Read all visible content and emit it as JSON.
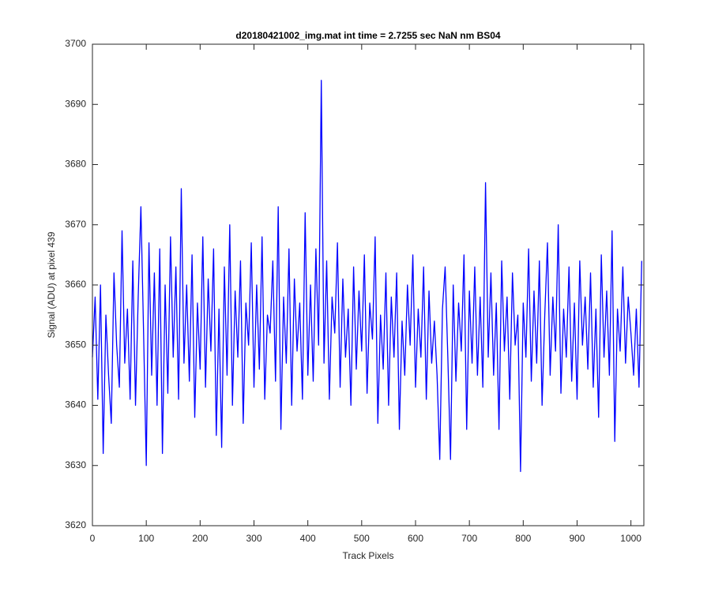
{
  "chart_data": {
    "type": "line",
    "title": "d20180421002_img.mat int time = 2.7255 sec  NaN nm BS04",
    "x_label": "Track Pixels",
    "y_label": "Signal (ADU) at pixel 439",
    "xlim": [
      0,
      1024
    ],
    "ylim": [
      3620,
      3700
    ],
    "xticks": [
      0,
      100,
      200,
      300,
      400,
      500,
      600,
      700,
      800,
      900,
      1000
    ],
    "yticks": [
      3620,
      3630,
      3640,
      3650,
      3660,
      3670,
      3680,
      3690,
      3700
    ],
    "grid": false,
    "x": [
      0,
      5,
      10,
      15,
      20,
      25,
      30,
      35,
      40,
      45,
      50,
      55,
      60,
      65,
      70,
      75,
      80,
      85,
      90,
      95,
      100,
      105,
      110,
      115,
      120,
      125,
      130,
      135,
      140,
      145,
      150,
      155,
      160,
      165,
      170,
      175,
      180,
      185,
      190,
      195,
      200,
      205,
      210,
      215,
      220,
      225,
      230,
      235,
      240,
      245,
      250,
      255,
      260,
      265,
      270,
      275,
      280,
      285,
      290,
      295,
      300,
      305,
      310,
      315,
      320,
      325,
      330,
      335,
      340,
      345,
      350,
      355,
      360,
      365,
      370,
      375,
      380,
      385,
      390,
      395,
      400,
      405,
      410,
      415,
      420,
      425,
      430,
      435,
      440,
      445,
      450,
      455,
      460,
      465,
      470,
      475,
      480,
      485,
      490,
      495,
      500,
      505,
      510,
      515,
      520,
      525,
      530,
      535,
      540,
      545,
      550,
      555,
      560,
      565,
      570,
      575,
      580,
      585,
      590,
      595,
      600,
      605,
      610,
      615,
      620,
      625,
      630,
      635,
      640,
      645,
      650,
      655,
      660,
      665,
      670,
      675,
      680,
      685,
      690,
      695,
      700,
      705,
      710,
      715,
      720,
      725,
      730,
      735,
      740,
      745,
      750,
      755,
      760,
      765,
      770,
      775,
      780,
      785,
      790,
      795,
      800,
      805,
      810,
      815,
      820,
      825,
      830,
      835,
      840,
      845,
      850,
      855,
      860,
      865,
      870,
      875,
      880,
      885,
      890,
      895,
      900,
      905,
      910,
      915,
      920,
      925,
      930,
      935,
      940,
      945,
      950,
      955,
      960,
      965,
      970,
      975,
      980,
      985,
      990,
      995,
      1000,
      1005,
      1010,
      1015,
      1020
    ],
    "series": [
      {
        "color": "#0000ff",
        "values": [
          3648,
          3658,
          3641,
          3660,
          3632,
          3655,
          3645,
          3637,
          3662,
          3650,
          3643,
          3669,
          3647,
          3656,
          3641,
          3664,
          3640,
          3658,
          3673,
          3652,
          3630,
          3667,
          3645,
          3662,
          3640,
          3666,
          3632,
          3660,
          3642,
          3668,
          3648,
          3663,
          3641,
          3676,
          3647,
          3660,
          3644,
          3665,
          3638,
          3657,
          3646,
          3668,
          3643,
          3661,
          3649,
          3666,
          3635,
          3656,
          3633,
          3663,
          3645,
          3670,
          3640,
          3659,
          3648,
          3664,
          3637,
          3657,
          3650,
          3667,
          3643,
          3660,
          3646,
          3668,
          3641,
          3655,
          3652,
          3664,
          3644,
          3673,
          3636,
          3658,
          3647,
          3666,
          3640,
          3661,
          3649,
          3657,
          3641,
          3672,
          3645,
          3660,
          3644,
          3666,
          3650,
          3694,
          3647,
          3664,
          3641,
          3658,
          3652,
          3667,
          3643,
          3661,
          3648,
          3656,
          3640,
          3663,
          3646,
          3659,
          3649,
          3665,
          3642,
          3657,
          3651,
          3668,
          3637,
          3655,
          3646,
          3662,
          3640,
          3658,
          3648,
          3662,
          3636,
          3654,
          3645,
          3660,
          3650,
          3665,
          3643,
          3656,
          3648,
          3663,
          3641,
          3659,
          3647,
          3654,
          3645,
          3631,
          3656,
          3663,
          3648,
          3631,
          3660,
          3644,
          3657,
          3649,
          3665,
          3636,
          3659,
          3647,
          3663,
          3645,
          3658,
          3643,
          3677,
          3648,
          3662,
          3645,
          3657,
          3636,
          3664,
          3649,
          3658,
          3641,
          3662,
          3650,
          3655,
          3629,
          3657,
          3648,
          3666,
          3644,
          3659,
          3647,
          3664,
          3640,
          3655,
          3667,
          3645,
          3658,
          3649,
          3670,
          3642,
          3656,
          3648,
          3663,
          3644,
          3657,
          3641,
          3664,
          3650,
          3658,
          3646,
          3662,
          3643,
          3656,
          3638,
          3665,
          3648,
          3659,
          3645,
          3669,
          3634,
          3656,
          3649,
          3663,
          3647,
          3658,
          3652,
          3645,
          3656,
          3643,
          3664
        ]
      }
    ]
  }
}
